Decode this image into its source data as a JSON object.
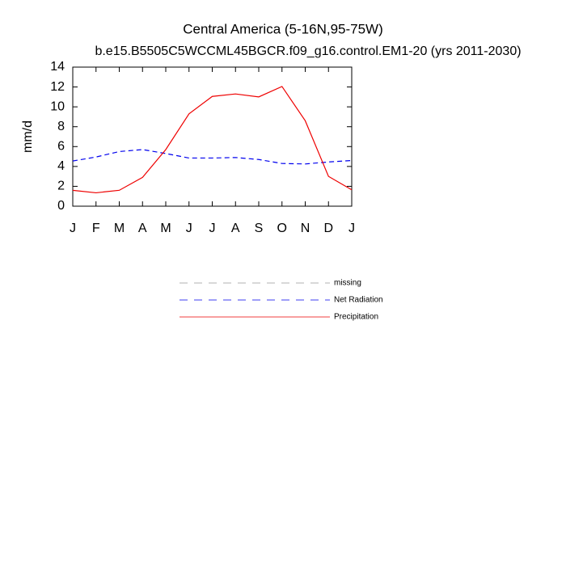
{
  "chart_data": {
    "type": "line",
    "title": "Central America (5-16N,95-75W)",
    "subtitle": "b.e15.B5505C5WCCML45BGCR.f09_g16.control.EM1-20 (yrs 2011-2030)",
    "y_label": "mm/d",
    "categories": [
      "J",
      "F",
      "M",
      "A",
      "M",
      "J",
      "J",
      "A",
      "S",
      "O",
      "N",
      "D",
      "J"
    ],
    "series": [
      {
        "name": "missing",
        "color": "#999999",
        "dashed": true,
        "values": [
          null,
          null,
          null,
          null,
          null,
          null,
          null,
          null,
          null,
          null,
          null,
          null,
          null
        ]
      },
      {
        "name": "Net Radiation",
        "color": "#0000ee",
        "dashed": true,
        "values": [
          4.55,
          4.95,
          5.5,
          5.7,
          5.3,
          4.85,
          4.85,
          4.9,
          4.7,
          4.3,
          4.25,
          4.45,
          4.6
        ]
      },
      {
        "name": "Precipitation",
        "color": "#ee0000",
        "dashed": false,
        "values": [
          1.6,
          1.35,
          1.6,
          2.9,
          5.7,
          9.3,
          11.05,
          11.3,
          11.0,
          12.05,
          8.6,
          3.0,
          1.65
        ]
      }
    ],
    "ylim": [
      0,
      14
    ],
    "yticks": [
      0,
      2,
      4,
      6,
      8,
      10,
      12,
      14
    ],
    "grid": false
  }
}
